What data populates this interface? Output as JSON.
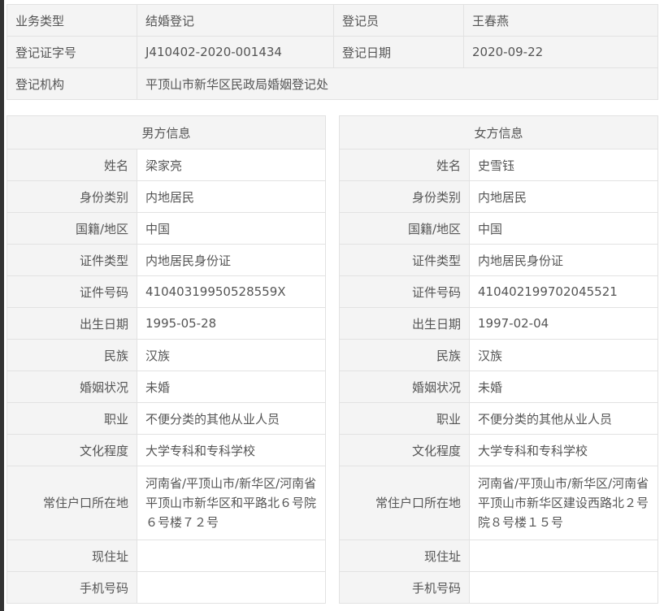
{
  "summary": {
    "business_type_label": "业务类型",
    "business_type": "结婚登记",
    "registrar_label": "登记员",
    "registrar": "王春燕",
    "cert_no_label": "登记证字号",
    "cert_no": "J410402-2020-001434",
    "reg_date_label": "登记日期",
    "reg_date": "2020-09-22",
    "agency_label": "登记机构",
    "agency": "平顶山市新华区民政局婚姻登记处"
  },
  "labels": [
    "姓名",
    "身份类别",
    "国籍/地区",
    "证件类型",
    "证件号码",
    "出生日期",
    "民族",
    "婚姻状况",
    "职业",
    "文化程度",
    "常住户口所在地",
    "现住址",
    "手机号码"
  ],
  "male": {
    "title": "男方信息",
    "values": [
      "梁家亮",
      "内地居民",
      "中国",
      "内地居民身份证",
      "41040319950528559X",
      "1995-05-28",
      "汉族",
      "未婚",
      "不便分类的其他从业人员",
      "大学专科和专科学校",
      "河南省/平顶山市/新华区/河南省平顶山市新华区和平路北６号院６号楼７２号",
      "",
      ""
    ]
  },
  "female": {
    "title": "女方信息",
    "values": [
      "史雪钰",
      "内地居民",
      "中国",
      "内地居民身份证",
      "410402199702045521",
      "1997-02-04",
      "汉族",
      "未婚",
      "不便分类的其他从业人员",
      "大学专科和专科学校",
      "河南省/平顶山市/新华区/河南省平顶山市新华区建设西路北２号院８号楼１５号",
      "",
      ""
    ]
  }
}
